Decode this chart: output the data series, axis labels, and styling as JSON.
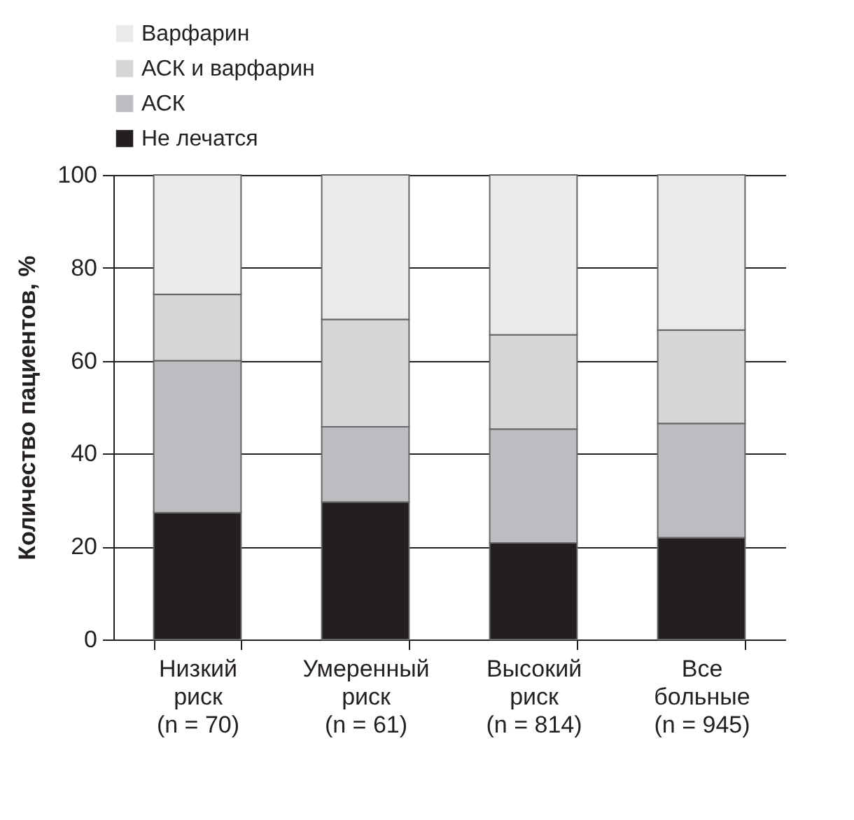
{
  "chart_data": {
    "type": "bar",
    "stacked": true,
    "ylabel": "Количество пациентов, %",
    "categories": [
      "Низкий\nриск\n(n = 70)",
      "Умеренный\nриск\n(n = 61)",
      "Высокий\nриск\n(n = 814)",
      "Все\nбольные\n(n = 945)"
    ],
    "series": [
      {
        "name": "Не лечатся",
        "color": "#231f20",
        "values": [
          27.3,
          29.6,
          20.8,
          21.9
        ]
      },
      {
        "name": "АСК",
        "color": "#bcbdc0",
        "values": [
          32.7,
          16.2,
          24.5,
          24.6
        ]
      },
      {
        "name": "АСК и варфарин",
        "color": "#d6d6d8",
        "values": [
          14.3,
          23.1,
          20.3,
          20.1
        ]
      },
      {
        "name": "Варфарин",
        "color": "#e9eaec",
        "values": [
          25.7,
          31.1,
          34.4,
          33.4
        ]
      }
    ],
    "ylim": [
      0,
      100
    ],
    "yticks": [
      0,
      20,
      40,
      60,
      80,
      100
    ],
    "grid": "y",
    "legend": "top left"
  }
}
